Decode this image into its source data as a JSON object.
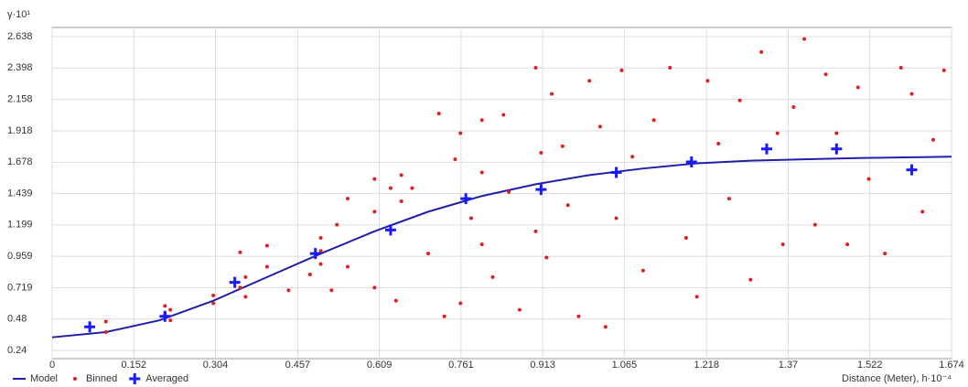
{
  "chart_data": {
    "type": "scatter",
    "y_label": "γ·10¹",
    "x_label": "Distance (Meter), h·10⁻⁴",
    "xlim": [
      0,
      1.674
    ],
    "ylim": [
      0.177,
      2.708
    ],
    "xticks": [
      0,
      0.152,
      0.304,
      0.457,
      0.609,
      0.761,
      0.913,
      1.065,
      1.218,
      1.37,
      1.522,
      1.674
    ],
    "yticks": [
      0.24,
      0.48,
      0.719,
      0.959,
      1.199,
      1.439,
      1.678,
      1.918,
      2.158,
      2.398,
      2.638
    ],
    "grid": true,
    "legend": "bottom-left",
    "series": [
      {
        "name": "Model",
        "color": "#1f1fa8",
        "mode": "line",
        "x": [
          0,
          0.1,
          0.2,
          0.3,
          0.4,
          0.5,
          0.6,
          0.7,
          0.8,
          0.9,
          1.0,
          1.1,
          1.2,
          1.3,
          1.4,
          1.5,
          1.674
        ],
        "values": [
          0.34,
          0.38,
          0.47,
          0.62,
          0.8,
          0.98,
          1.15,
          1.3,
          1.42,
          1.51,
          1.58,
          1.63,
          1.67,
          1.69,
          1.7,
          1.71,
          1.72
        ]
      },
      {
        "name": "Binned",
        "color": "#e0201c",
        "mode": "dot",
        "x": [
          0.1,
          0.1,
          0.21,
          0.21,
          0.22,
          0.22,
          0.3,
          0.3,
          0.35,
          0.35,
          0.36,
          0.36,
          0.4,
          0.4,
          0.44,
          0.48,
          0.5,
          0.5,
          0.5,
          0.52,
          0.53,
          0.55,
          0.55,
          0.6,
          0.6,
          0.6,
          0.63,
          0.64,
          0.65,
          0.65,
          0.67,
          0.7,
          0.72,
          0.73,
          0.75,
          0.76,
          0.76,
          0.78,
          0.8,
          0.8,
          0.8,
          0.82,
          0.84,
          0.85,
          0.87,
          0.9,
          0.9,
          0.91,
          0.92,
          0.93,
          0.95,
          0.96,
          0.98,
          1.0,
          1.02,
          1.03,
          1.05,
          1.06,
          1.08,
          1.1,
          1.12,
          1.15,
          1.18,
          1.2,
          1.22,
          1.24,
          1.26,
          1.28,
          1.3,
          1.32,
          1.35,
          1.36,
          1.38,
          1.4,
          1.42,
          1.44,
          1.46,
          1.48,
          1.5,
          1.52,
          1.55,
          1.58,
          1.6,
          1.62,
          1.64,
          1.66
        ],
        "values": [
          0.46,
          0.38,
          0.52,
          0.58,
          0.47,
          0.55,
          0.6,
          0.66,
          0.72,
          0.99,
          0.65,
          0.8,
          0.88,
          1.04,
          0.7,
          0.82,
          1.1,
          0.9,
          1.0,
          0.7,
          1.2,
          1.4,
          0.88,
          1.55,
          0.72,
          1.3,
          1.48,
          0.62,
          1.38,
          1.58,
          1.48,
          0.98,
          2.05,
          0.5,
          1.7,
          1.9,
          0.6,
          1.25,
          2.0,
          1.6,
          1.05,
          0.8,
          2.04,
          1.45,
          0.55,
          1.15,
          2.4,
          1.75,
          0.95,
          2.2,
          1.8,
          1.35,
          0.5,
          2.3,
          1.95,
          0.42,
          1.25,
          2.38,
          1.72,
          0.85,
          2.0,
          2.4,
          1.1,
          0.65,
          2.3,
          1.82,
          1.4,
          2.15,
          0.78,
          2.52,
          1.9,
          1.05,
          2.1,
          2.62,
          1.2,
          2.35,
          1.9,
          1.05,
          2.25,
          1.55,
          0.98,
          2.4,
          2.2,
          1.3,
          1.85,
          2.38
        ]
      },
      {
        "name": "Averaged",
        "color": "#1a1aff",
        "mode": "cross",
        "x": [
          0.07,
          0.21,
          0.34,
          0.49,
          0.63,
          0.77,
          0.91,
          1.05,
          1.19,
          1.33,
          1.46,
          1.6
        ],
        "values": [
          0.42,
          0.5,
          0.76,
          0.98,
          1.16,
          1.4,
          1.47,
          1.6,
          1.68,
          1.78,
          1.78,
          1.62
        ]
      }
    ]
  }
}
